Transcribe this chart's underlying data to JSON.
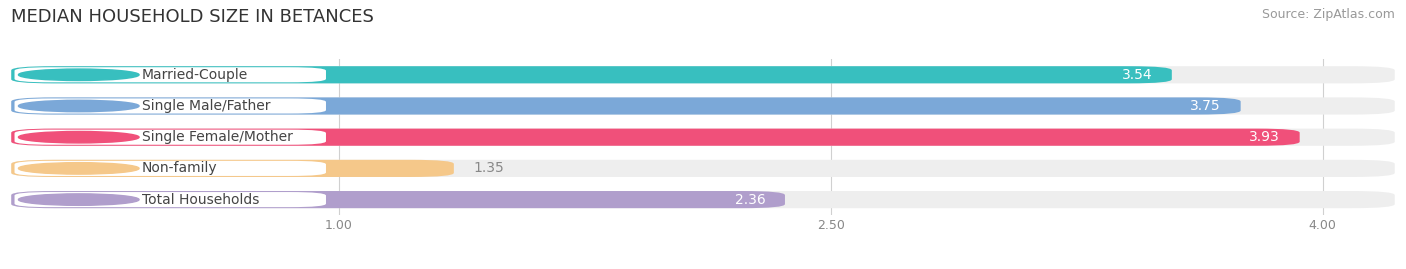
{
  "title": "MEDIAN HOUSEHOLD SIZE IN BETANCES",
  "source": "Source: ZipAtlas.com",
  "categories": [
    "Married-Couple",
    "Single Male/Father",
    "Single Female/Mother",
    "Non-family",
    "Total Households"
  ],
  "values": [
    3.54,
    3.75,
    3.93,
    1.35,
    2.36
  ],
  "bar_colors": [
    "#38bfbf",
    "#7ba8d8",
    "#f0507a",
    "#f5c88a",
    "#b09ecc"
  ],
  "bar_bg_color": "#eeeeee",
  "xlim": [
    0,
    4.22
  ],
  "xmin": 0,
  "xticks": [
    1.0,
    2.5,
    4.0
  ],
  "label_color_inside": "#ffffff",
  "label_color_outside": "#888888",
  "title_fontsize": 13,
  "source_fontsize": 9,
  "bar_label_fontsize": 10,
  "category_fontsize": 10,
  "value_threshold": 1.8
}
